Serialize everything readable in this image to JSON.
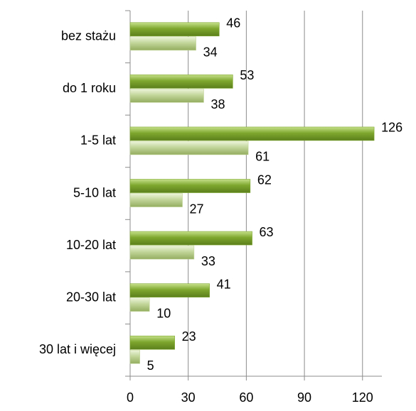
{
  "chart_data": {
    "type": "bar",
    "orientation": "horizontal",
    "categories": [
      "bez stażu",
      "do 1 roku",
      "1-5 lat",
      "5-10 lat",
      "10-20 lat",
      "20-30 lat",
      "30 lat i więcej"
    ],
    "series": [
      {
        "color": "#7ea72e",
        "values": [
          46,
          53,
          126,
          62,
          63,
          41,
          23
        ]
      },
      {
        "color": "#c3d69b",
        "values": [
          34,
          38,
          61,
          27,
          33,
          10,
          5
        ]
      }
    ],
    "xlim": [
      0,
      130
    ],
    "xticks": [
      0,
      30,
      60,
      90,
      120
    ],
    "grid": true
  }
}
